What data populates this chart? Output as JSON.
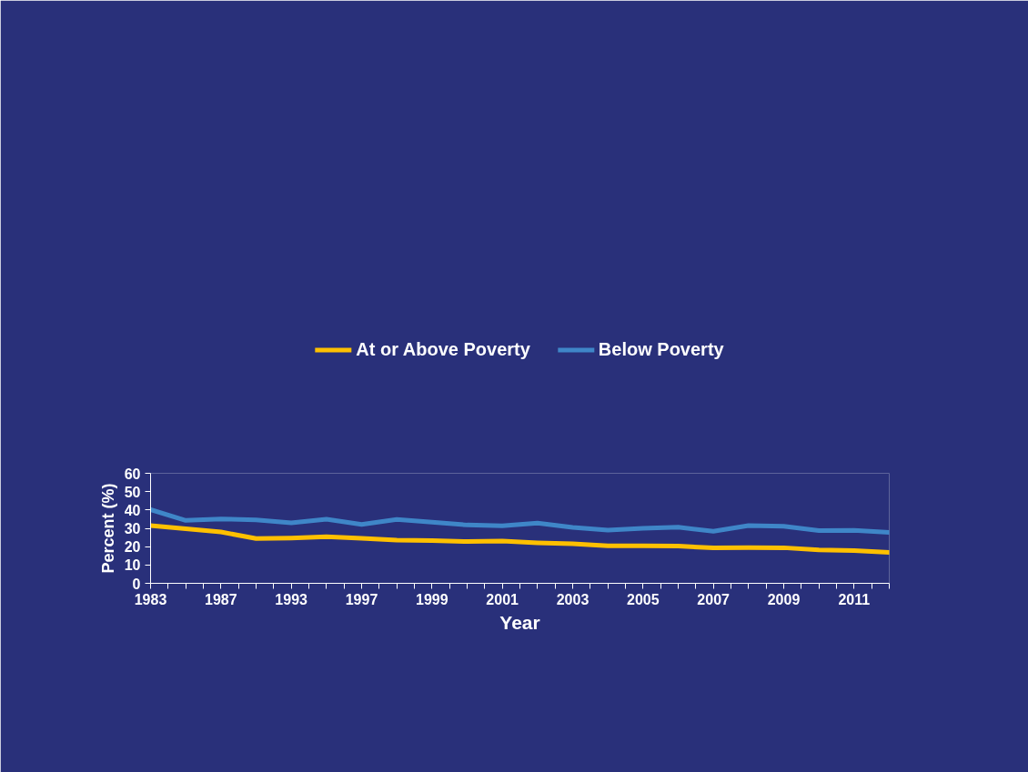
{
  "chart_data": {
    "type": "line",
    "xlabel": "Year",
    "ylabel": "Percent (%)",
    "categories": [
      "1983",
      null,
      "1987",
      null,
      "1993",
      null,
      "1997",
      null,
      "1999",
      null,
      "2001",
      null,
      "2003",
      null,
      "2005",
      null,
      "2007",
      null,
      "2009",
      null,
      "2011",
      null
    ],
    "series": [
      {
        "name": "At or Above Poverty",
        "color": "#ffc000",
        "values": [
          31.5,
          29.8,
          28.0,
          24.4,
          24.7,
          25.4,
          24.6,
          23.5,
          23.3,
          22.8,
          23.0,
          22.1,
          21.6,
          20.5,
          20.5,
          20.3,
          19.3,
          19.5,
          19.4,
          18.2,
          17.8,
          16.9
        ]
      },
      {
        "name": "Below Poverty",
        "color": "#3f86c8",
        "values": [
          40.2,
          34.3,
          35.1,
          34.6,
          33.0,
          35.0,
          32.1,
          34.8,
          33.4,
          31.8,
          31.4,
          32.8,
          30.5,
          29.0,
          30.0,
          30.6,
          28.4,
          31.5,
          31.1,
          28.8,
          28.9,
          27.8
        ]
      }
    ],
    "ylim": [
      0,
      60
    ],
    "yticks": [
      0,
      10,
      20,
      30,
      40,
      50,
      60
    ],
    "legend": "top",
    "grid": false
  }
}
